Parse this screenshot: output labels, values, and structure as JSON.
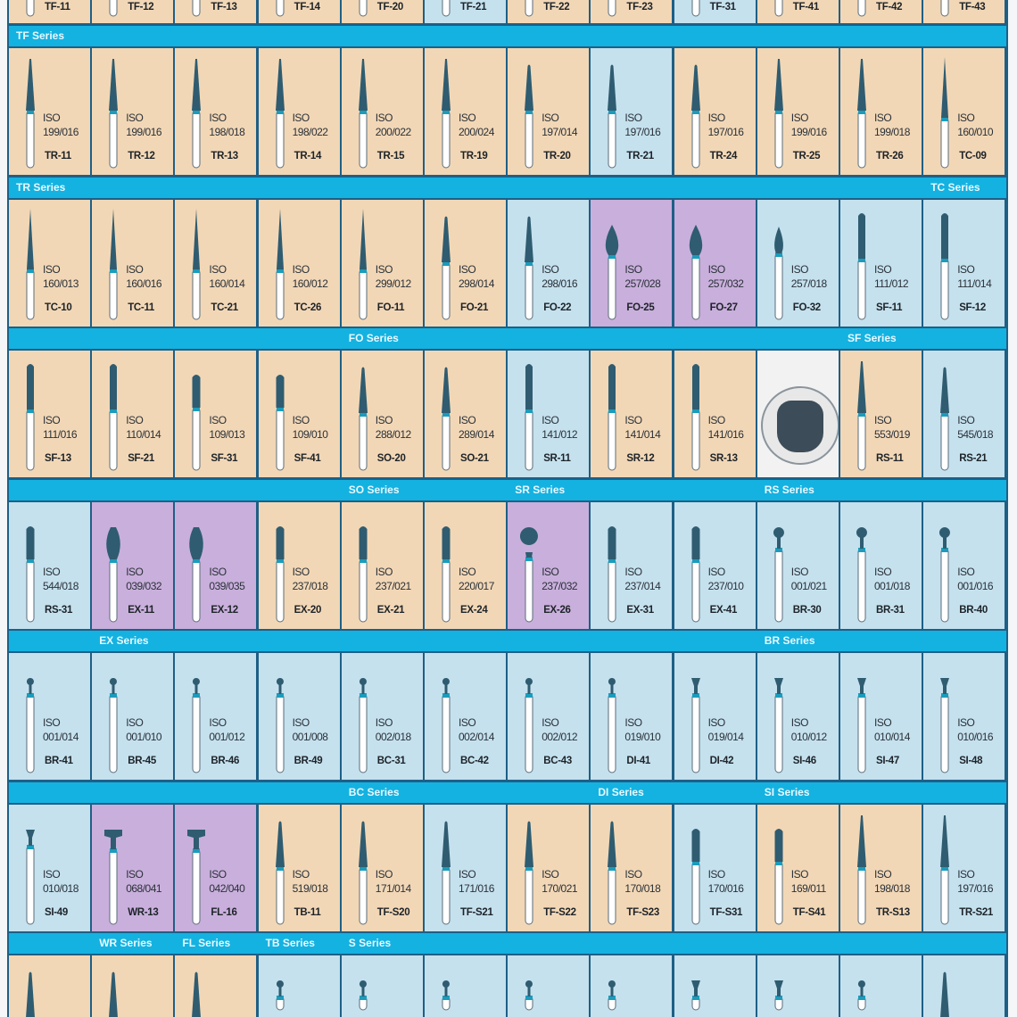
{
  "colors": {
    "tan": "#f2d7b6",
    "blue": "#c5e1ee",
    "purple": "#c9afdc",
    "white": "#f2f2f2",
    "bar": "#14b2e0",
    "head": "#2f5c70",
    "band": "#1b9cbc"
  },
  "iso_label": "ISO",
  "top_row": [
    {
      "code": "TF-11",
      "bg": "tan"
    },
    {
      "code": "TF-12",
      "bg": "tan"
    },
    {
      "code": "TF-13",
      "bg": "tan"
    },
    {
      "code": "TF-14",
      "bg": "tan"
    },
    {
      "code": "TF-20",
      "bg": "tan"
    },
    {
      "code": "TF-21",
      "bg": "blue"
    },
    {
      "code": "TF-22",
      "bg": "tan"
    },
    {
      "code": "TF-23",
      "bg": "tan"
    },
    {
      "code": "TF-31",
      "bg": "blue"
    },
    {
      "code": "TF-41",
      "bg": "tan"
    },
    {
      "code": "TF-42",
      "bg": "tan"
    },
    {
      "code": "TF-43",
      "bg": "tan"
    }
  ],
  "bars": [
    [
      {
        "col": 0,
        "label": "TF Series"
      }
    ],
    [
      {
        "col": 0,
        "label": "TR Series"
      },
      {
        "col": 11,
        "label": "TC Series"
      }
    ],
    [
      {
        "col": 4,
        "label": "FO Series"
      },
      {
        "col": 10,
        "label": "SF Series"
      }
    ],
    [
      {
        "col": 4,
        "label": "SO Series"
      },
      {
        "col": 6,
        "label": "SR Series"
      },
      {
        "col": 9,
        "label": "RS Series"
      }
    ],
    [
      {
        "col": 1,
        "label": "EX Series"
      },
      {
        "col": 9,
        "label": "BR Series"
      }
    ],
    [
      {
        "col": 4,
        "label": "BC Series"
      },
      {
        "col": 7,
        "label": "DI Series"
      },
      {
        "col": 9,
        "label": "SI Series"
      }
    ],
    [
      {
        "col": 1,
        "label": "WR Series"
      },
      {
        "col": 2,
        "label": "FL Series"
      },
      {
        "col": 3,
        "label": "TB Series"
      },
      {
        "col": 4,
        "label": "S Series"
      }
    ]
  ],
  "rows": [
    [
      {
        "iso": "199/016",
        "code": "TR-11",
        "bg": "tan",
        "shape": "taper-long"
      },
      {
        "iso": "199/016",
        "code": "TR-12",
        "bg": "tan",
        "shape": "taper-long"
      },
      {
        "iso": "198/018",
        "code": "TR-13",
        "bg": "tan",
        "shape": "taper-long"
      },
      {
        "iso": "198/022",
        "code": "TR-14",
        "bg": "tan",
        "shape": "taper-long"
      },
      {
        "iso": "200/022",
        "code": "TR-15",
        "bg": "tan",
        "shape": "taper-long"
      },
      {
        "iso": "200/024",
        "code": "TR-19",
        "bg": "tan",
        "shape": "taper-long"
      },
      {
        "iso": "197/014",
        "code": "TR-20",
        "bg": "tan",
        "shape": "taper"
      },
      {
        "iso": "197/016",
        "code": "TR-21",
        "bg": "blue",
        "shape": "taper"
      },
      {
        "iso": "197/016",
        "code": "TR-24",
        "bg": "tan",
        "shape": "taper"
      },
      {
        "iso": "199/016",
        "code": "TR-25",
        "bg": "tan",
        "shape": "taper-long"
      },
      {
        "iso": "199/018",
        "code": "TR-26",
        "bg": "tan",
        "shape": "taper-long"
      },
      {
        "iso": "160/010",
        "code": "TC-09",
        "bg": "tan",
        "shape": "needle"
      }
    ],
    [
      {
        "iso": "160/013",
        "code": "TC-10",
        "bg": "tan",
        "shape": "needle"
      },
      {
        "iso": "160/016",
        "code": "TC-11",
        "bg": "tan",
        "shape": "needle"
      },
      {
        "iso": "160/014",
        "code": "TC-21",
        "bg": "tan",
        "shape": "needle"
      },
      {
        "iso": "160/012",
        "code": "TC-26",
        "bg": "tan",
        "shape": "needle"
      },
      {
        "iso": "299/012",
        "code": "FO-11",
        "bg": "tan",
        "shape": "needle"
      },
      {
        "iso": "298/014",
        "code": "FO-21",
        "bg": "tan",
        "shape": "taper"
      },
      {
        "iso": "298/016",
        "code": "FO-22",
        "bg": "blue",
        "shape": "taper"
      },
      {
        "iso": "257/028",
        "code": "FO-25",
        "bg": "purple",
        "shape": "flame"
      },
      {
        "iso": "257/032",
        "code": "FO-27",
        "bg": "purple",
        "shape": "flame"
      },
      {
        "iso": "257/018",
        "code": "FO-32",
        "bg": "blue",
        "shape": "flame-small"
      },
      {
        "iso": "111/012",
        "code": "SF-11",
        "bg": "blue",
        "shape": "cylinder"
      },
      {
        "iso": "111/014",
        "code": "SF-12",
        "bg": "blue",
        "shape": "cylinder"
      }
    ],
    [
      {
        "iso": "111/016",
        "code": "SF-13",
        "bg": "tan",
        "shape": "cylinder"
      },
      {
        "iso": "110/014",
        "code": "SF-21",
        "bg": "tan",
        "shape": "cylinder"
      },
      {
        "iso": "109/013",
        "code": "SF-31",
        "bg": "tan",
        "shape": "cylinder-short"
      },
      {
        "iso": "109/010",
        "code": "SF-41",
        "bg": "tan",
        "shape": "cylinder-short"
      },
      {
        "iso": "288/012",
        "code": "SO-20",
        "bg": "tan",
        "shape": "taper"
      },
      {
        "iso": "289/014",
        "code": "SO-21",
        "bg": "tan",
        "shape": "taper"
      },
      {
        "iso": "141/012",
        "code": "SR-11",
        "bg": "blue",
        "shape": "cylinder"
      },
      {
        "iso": "141/014",
        "code": "SR-12",
        "bg": "tan",
        "shape": "cylinder"
      },
      {
        "iso": "141/016",
        "code": "SR-13",
        "bg": "tan",
        "shape": "cylinder"
      },
      {
        "bg": "white",
        "shape": "stone"
      },
      {
        "iso": "553/019",
        "code": "RS-11",
        "bg": "tan",
        "shape": "taper-long"
      },
      {
        "iso": "545/018",
        "code": "RS-21",
        "bg": "blue",
        "shape": "taper"
      }
    ],
    [
      {
        "iso": "544/018",
        "code": "RS-31",
        "bg": "blue",
        "shape": "cylinder-short"
      },
      {
        "iso": "039/032",
        "code": "EX-11",
        "bg": "purple",
        "shape": "barrel"
      },
      {
        "iso": "039/035",
        "code": "EX-12",
        "bg": "purple",
        "shape": "barrel"
      },
      {
        "iso": "237/018",
        "code": "EX-20",
        "bg": "tan",
        "shape": "cylinder-short"
      },
      {
        "iso": "237/021",
        "code": "EX-21",
        "bg": "tan",
        "shape": "cylinder-short"
      },
      {
        "iso": "220/017",
        "code": "EX-24",
        "bg": "tan",
        "shape": "cylinder-short"
      },
      {
        "iso": "237/032",
        "code": "EX-26",
        "bg": "purple",
        "shape": "ball-large"
      },
      {
        "iso": "237/014",
        "code": "EX-31",
        "bg": "blue",
        "shape": "cylinder-short"
      },
      {
        "iso": "237/010",
        "code": "EX-41",
        "bg": "blue",
        "shape": "cylinder-short"
      },
      {
        "iso": "001/021",
        "code": "BR-30",
        "bg": "blue",
        "shape": "ball"
      },
      {
        "iso": "001/018",
        "code": "BR-31",
        "bg": "blue",
        "shape": "ball"
      },
      {
        "iso": "001/016",
        "code": "BR-40",
        "bg": "blue",
        "shape": "ball"
      }
    ],
    [
      {
        "iso": "001/014",
        "code": "BR-41",
        "bg": "blue",
        "shape": "ball-small"
      },
      {
        "iso": "001/010",
        "code": "BR-45",
        "bg": "blue",
        "shape": "ball-small"
      },
      {
        "iso": "001/012",
        "code": "BR-46",
        "bg": "blue",
        "shape": "ball-small"
      },
      {
        "iso": "001/008",
        "code": "BR-49",
        "bg": "blue",
        "shape": "ball-small"
      },
      {
        "iso": "002/018",
        "code": "BC-31",
        "bg": "blue",
        "shape": "ball-small"
      },
      {
        "iso": "002/014",
        "code": "BC-42",
        "bg": "blue",
        "shape": "ball-small"
      },
      {
        "iso": "002/012",
        "code": "BC-43",
        "bg": "blue",
        "shape": "ball-small"
      },
      {
        "iso": "019/010",
        "code": "DI-41",
        "bg": "blue",
        "shape": "ball-small"
      },
      {
        "iso": "019/014",
        "code": "DI-42",
        "bg": "blue",
        "shape": "inverted"
      },
      {
        "iso": "010/012",
        "code": "SI-46",
        "bg": "blue",
        "shape": "inverted"
      },
      {
        "iso": "010/014",
        "code": "SI-47",
        "bg": "blue",
        "shape": "inverted"
      },
      {
        "iso": "010/016",
        "code": "SI-48",
        "bg": "blue",
        "shape": "inverted"
      }
    ],
    [
      {
        "iso": "010/018",
        "code": "SI-49",
        "bg": "blue",
        "shape": "inverted"
      },
      {
        "iso": "068/041",
        "code": "WR-13",
        "bg": "purple",
        "shape": "wheel"
      },
      {
        "iso": "042/040",
        "code": "FL-16",
        "bg": "purple",
        "shape": "wheel"
      },
      {
        "iso": "519/018",
        "code": "TB-11",
        "bg": "tan",
        "shape": "taper"
      },
      {
        "iso": "171/014",
        "code": "TF-S20",
        "bg": "tan",
        "shape": "taper"
      },
      {
        "iso": "171/016",
        "code": "TF-S21",
        "bg": "blue",
        "shape": "taper"
      },
      {
        "iso": "170/021",
        "code": "TF-S22",
        "bg": "tan",
        "shape": "taper"
      },
      {
        "iso": "170/018",
        "code": "TF-S23",
        "bg": "tan",
        "shape": "taper"
      },
      {
        "iso": "170/016",
        "code": "TF-S31",
        "bg": "blue",
        "shape": "cylinder-short"
      },
      {
        "iso": "169/011",
        "code": "TF-S41",
        "bg": "tan",
        "shape": "cylinder-short"
      },
      {
        "iso": "198/018",
        "code": "TR-S13",
        "bg": "tan",
        "shape": "taper-long"
      },
      {
        "iso": "197/016",
        "code": "TR-S21",
        "bg": "blue",
        "shape": "taper-long"
      }
    ]
  ],
  "bottom_row": [
    {
      "bg": "tan",
      "shape": "taper"
    },
    {
      "bg": "tan",
      "shape": "taper"
    },
    {
      "bg": "tan",
      "shape": "taper"
    },
    {
      "bg": "blue",
      "shape": "ball-small"
    },
    {
      "bg": "blue",
      "shape": "ball-small"
    },
    {
      "bg": "blue",
      "shape": "ball-small"
    },
    {
      "bg": "blue",
      "shape": "ball-small"
    },
    {
      "bg": "blue",
      "shape": "ball-small"
    },
    {
      "bg": "blue",
      "shape": "inverted"
    },
    {
      "bg": "blue",
      "shape": "inverted"
    },
    {
      "bg": "blue",
      "shape": "ball-small"
    },
    {
      "bg": "blue",
      "shape": "taper"
    }
  ]
}
